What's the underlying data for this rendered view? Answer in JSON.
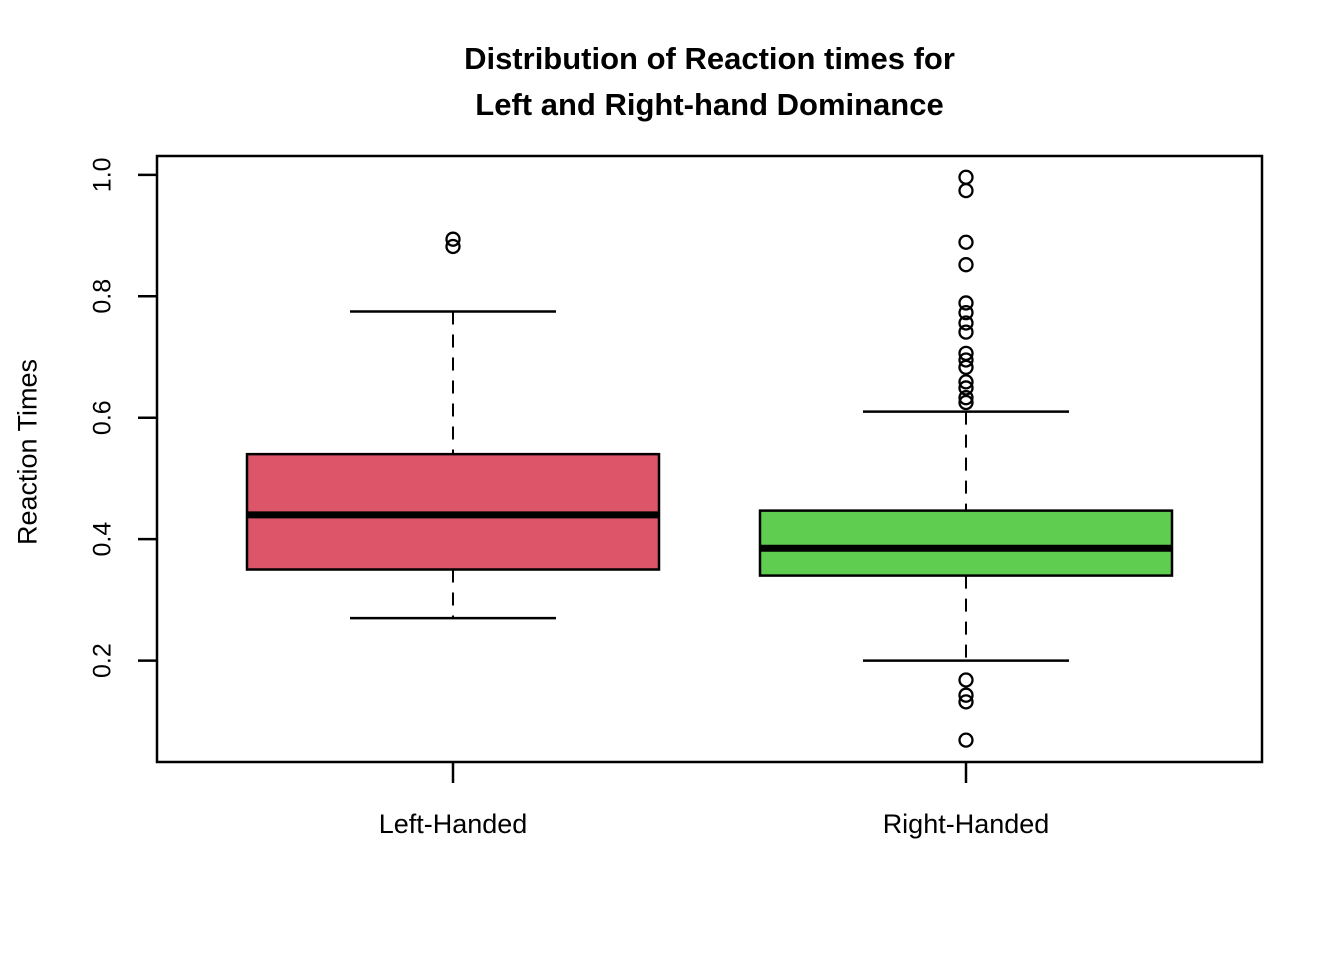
{
  "figure": {
    "title_line1": "Distribution of Reaction times for",
    "title_line2": "Left and Right-hand Dominance",
    "ylabel": "Reaction Times"
  },
  "chart_data": {
    "type": "boxplot",
    "title": "Distribution of Reaction times for Left and Right-hand Dominance",
    "title_lines": [
      "Distribution of Reaction times for",
      "Left and Right-hand Dominance"
    ],
    "xlabel": "",
    "ylabel": "Reaction Times",
    "categories": [
      "Left-Handed",
      "Right-Handed"
    ],
    "y_ticks": [
      0.2,
      0.4,
      0.6,
      0.8,
      1.0
    ],
    "y_tick_labels": [
      "0.2",
      "0.4",
      "0.6",
      "0.8",
      "1.0"
    ],
    "ylim": [
      0.033,
      1.031
    ],
    "grid": false,
    "legend": "none",
    "frame_color": "#000000",
    "series": [
      {
        "name": "Left-Handed",
        "box_color": "#DC5568",
        "lower_whisker": 0.27,
        "q1": 0.35,
        "median": 0.44,
        "q3": 0.54,
        "upper_whisker": 0.775,
        "outliers": [
          0.882,
          0.894
        ]
      },
      {
        "name": "Right-Handed",
        "box_color": "#5ECD50",
        "lower_whisker": 0.2,
        "q1": 0.34,
        "median": 0.385,
        "q3": 0.447,
        "upper_whisker": 0.61,
        "outliers": [
          0.996,
          0.974,
          0.889,
          0.852,
          0.789,
          0.773,
          0.756,
          0.741,
          0.706,
          0.695,
          0.683,
          0.659,
          0.649,
          0.633,
          0.625,
          0.168,
          0.143,
          0.132,
          0.069
        ]
      }
    ]
  }
}
